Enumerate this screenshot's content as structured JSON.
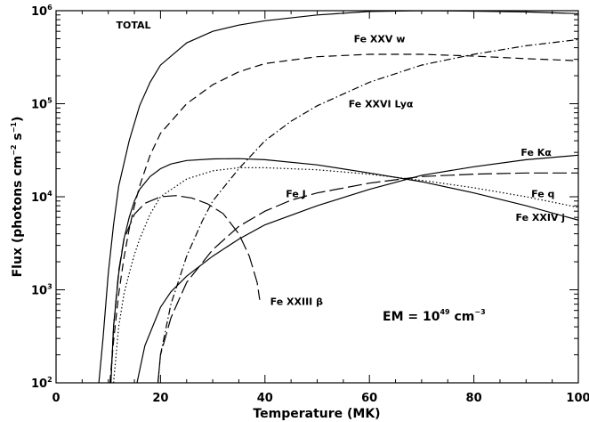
{
  "chart_data": {
    "type": "line",
    "title": "",
    "xlabel": "Temperature (MK)",
    "ylabel": {
      "main": "Flux (photons cm",
      "exp1": "−2",
      "mid": " s",
      "exp2": "−1",
      "end": ")"
    },
    "xlim": [
      0,
      100
    ],
    "ylim": [
      100,
      1000000
    ],
    "yscale": "log",
    "grid": false,
    "x_ticks": [
      "0",
      "20",
      "40",
      "60",
      "80",
      "100"
    ],
    "y_ticks": [
      {
        "base": "10",
        "exp": "2"
      },
      {
        "base": "10",
        "exp": "3"
      },
      {
        "base": "10",
        "exp": "4"
      },
      {
        "base": "10",
        "exp": "5"
      },
      {
        "base": "10",
        "exp": "6"
      }
    ],
    "annotation": {
      "prefix": "EM = 10",
      "exp": "49",
      "middle": " cm",
      "exp2": "−3"
    },
    "series": [
      {
        "name": "TOTAL",
        "style": "solid",
        "x": [
          8.2,
          9,
          10,
          11,
          12,
          14,
          16,
          18,
          20,
          25,
          30,
          35,
          40,
          50,
          60,
          70,
          80,
          90,
          100
        ],
        "y": [
          100,
          300,
          1500,
          5000,
          13000,
          40000,
          95000,
          170000,
          260000,
          450000,
          600000,
          700000,
          780000,
          900000,
          980000,
          1000000,
          990000,
          970000,
          930000
        ]
      },
      {
        "name": "Fe XXV w",
        "style": "dashed",
        "x": [
          10.3,
          11,
          12,
          13,
          14,
          15,
          16,
          18,
          20,
          25,
          30,
          35,
          40,
          50,
          60,
          70,
          80,
          90,
          100
        ],
        "y": [
          100,
          280,
          900,
          2200,
          4500,
          8000,
          13000,
          28000,
          48000,
          100000,
          160000,
          220000,
          270000,
          320000,
          340000,
          340000,
          325000,
          305000,
          290000
        ]
      },
      {
        "name": "Fe XXVI Lyα",
        "style": "dashdot",
        "x": [
          19.5,
          20,
          22,
          25,
          28,
          30,
          35,
          40,
          45,
          50,
          60,
          70,
          80,
          90,
          100
        ],
        "y": [
          100,
          200,
          700,
          2300,
          5500,
          9000,
          20000,
          40000,
          65000,
          95000,
          170000,
          260000,
          340000,
          420000,
          490000
        ]
      },
      {
        "name": "Fe Kα",
        "style": "solid",
        "x": [
          10.5,
          11,
          12,
          13,
          14,
          15,
          16,
          18,
          20,
          22,
          25,
          30,
          35,
          40,
          50,
          60,
          70,
          80,
          90,
          100
        ],
        "y": [
          100,
          400,
          1500,
          3500,
          6000,
          9000,
          12000,
          16500,
          20000,
          22500,
          24500,
          25500,
          25700,
          25000,
          22000,
          18000,
          14500,
          11000,
          8000,
          5600
        ]
      },
      {
        "name": "Fe q",
        "style": "dotted",
        "x": [
          11,
          12,
          13,
          14,
          15,
          16,
          18,
          20,
          25,
          30,
          35,
          40,
          50,
          60,
          70,
          80,
          90,
          100
        ],
        "y": [
          100,
          400,
          900,
          1500,
          2400,
          3500,
          6500,
          10000,
          15500,
          19000,
          20500,
          20500,
          19500,
          17500,
          15000,
          12500,
          10000,
          7700
        ]
      },
      {
        "name": "Fe J",
        "style": "longdash",
        "x": [
          19.5,
          20,
          22,
          25,
          30,
          35,
          40,
          45,
          50,
          60,
          70,
          80,
          90,
          100
        ],
        "y": [
          100,
          200,
          500,
          1200,
          2700,
          4800,
          7000,
          9200,
          11000,
          14000,
          16500,
          17500,
          18000,
          18000
        ]
      },
      {
        "name": "Fe XXIV j",
        "style": "solid",
        "x": [
          15.5,
          17,
          20,
          22,
          25,
          30,
          35,
          40,
          50,
          60,
          70,
          80,
          90,
          100
        ],
        "y": [
          100,
          250,
          650,
          950,
          1400,
          2300,
          3500,
          5000,
          8000,
          12000,
          17000,
          21000,
          25000,
          28000
        ]
      },
      {
        "name": "Fe XXIII β",
        "style": "longdash",
        "x": [
          10.5,
          11,
          12,
          13,
          15,
          17,
          20,
          23,
          26,
          29,
          32,
          35,
          37,
          38.5,
          39
        ],
        "y": [
          100,
          400,
          1600,
          3500,
          6500,
          8500,
          10000,
          10300,
          9700,
          8400,
          6600,
          4000,
          2300,
          1200,
          780
        ]
      }
    ],
    "labels": [
      {
        "text": "TOTAL",
        "x": 11.5,
        "y": 700000
      },
      {
        "text": "Fe XXV w",
        "x": 57,
        "y": 500000
      },
      {
        "text": "Fe XXVI Lyα",
        "x": 56,
        "y": 100000
      },
      {
        "text": "Fe Kα",
        "x": 89,
        "y": 30000
      },
      {
        "text": "Fe J",
        "x": 44,
        "y": 10800
      },
      {
        "text": "Fe q",
        "x": 91,
        "y": 10800
      },
      {
        "text": "Fe XXIV j",
        "x": 88,
        "y": 6000
      },
      {
        "text": "Fe XXIII β",
        "x": 41,
        "y": 750
      }
    ]
  }
}
